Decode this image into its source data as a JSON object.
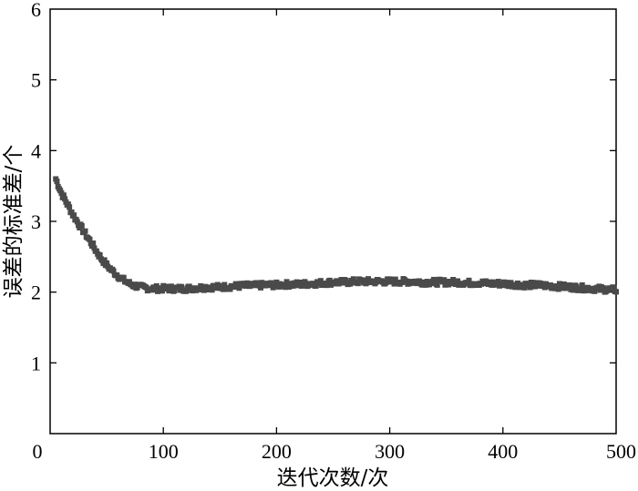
{
  "chart_data": {
    "type": "scatter",
    "title": "",
    "xlabel": "迭代次数/次",
    "ylabel": "误差的标准差/个",
    "xlim": [
      0,
      500
    ],
    "ylim": [
      0,
      6
    ],
    "x_ticks": [
      "0",
      "100",
      "200",
      "300",
      "400",
      "500"
    ],
    "y_ticks": [
      "1",
      "2",
      "3",
      "4",
      "5",
      "6"
    ],
    "grid": false,
    "legend": "none",
    "marker_color": "#4a4a4a",
    "series": [
      {
        "x": [
          5,
          10,
          15,
          20,
          25,
          30,
          35,
          40,
          45,
          50,
          55,
          60,
          65,
          70,
          75,
          80,
          85,
          90,
          95,
          100,
          110,
          120,
          130,
          140,
          150,
          160,
          170,
          180,
          190,
          200,
          210,
          220,
          230,
          240,
          250,
          260,
          270,
          280,
          290,
          300,
          310,
          320,
          330,
          340,
          350,
          360,
          370,
          380,
          390,
          400,
          410,
          420,
          430,
          440,
          450,
          460,
          470,
          480,
          490,
          500
        ],
        "values": [
          3.6,
          3.4,
          3.25,
          3.1,
          2.97,
          2.85,
          2.73,
          2.6,
          2.48,
          2.38,
          2.3,
          2.23,
          2.17,
          2.12,
          2.09,
          2.07,
          2.06,
          2.05,
          2.05,
          2.05,
          2.05,
          2.05,
          2.06,
          2.07,
          2.07,
          2.08,
          2.09,
          2.09,
          2.1,
          2.1,
          2.11,
          2.11,
          2.12,
          2.13,
          2.14,
          2.14,
          2.15,
          2.15,
          2.15,
          2.15,
          2.15,
          2.15,
          2.14,
          2.14,
          2.14,
          2.14,
          2.13,
          2.13,
          2.12,
          2.12,
          2.11,
          2.1,
          2.1,
          2.09,
          2.08,
          2.07,
          2.06,
          2.05,
          2.04,
          2.03
        ]
      }
    ]
  }
}
